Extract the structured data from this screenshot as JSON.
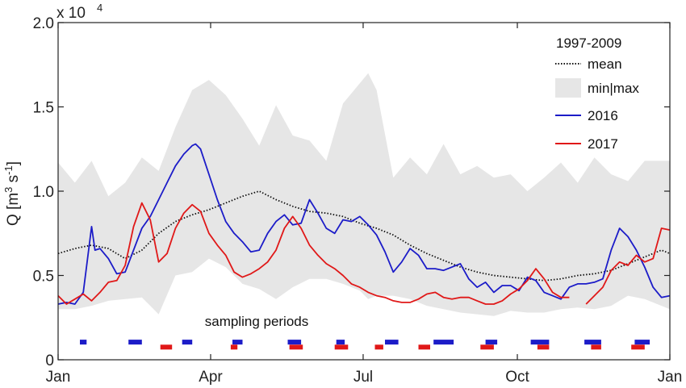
{
  "chart_data": {
    "type": "line",
    "ylabel_prefix": "Q [m",
    "ylabel_sup1": "3",
    "ylabel_mid": " s",
    "ylabel_sup2": "-1",
    "ylabel_suffix": "]",
    "exponent_label": "x 10",
    "exponent_power": "4",
    "ylim": [
      0,
      20000
    ],
    "xlim": [
      0,
      365
    ],
    "y_ticks": [
      {
        "value": 0,
        "label": "0"
      },
      {
        "value": 5000,
        "label": "0.5"
      },
      {
        "value": 10000,
        "label": "1.0"
      },
      {
        "value": 15000,
        "label": "1.5"
      },
      {
        "value": 20000,
        "label": "2.0"
      }
    ],
    "x_ticks": [
      {
        "value": 0,
        "label": "Jan"
      },
      {
        "value": 91,
        "label": "Apr"
      },
      {
        "value": 182,
        "label": "Jul"
      },
      {
        "value": 274,
        "label": "Oct"
      },
      {
        "value": 365,
        "label": "Jan"
      }
    ],
    "legend_title": "1997-2009",
    "legend_position": "top-right",
    "annotation": "sampling periods",
    "band": {
      "name": "min|max",
      "color": "#e6e6e6",
      "x": [
        0,
        10,
        20,
        30,
        40,
        50,
        60,
        70,
        80,
        90,
        100,
        110,
        120,
        130,
        140,
        150,
        160,
        170,
        180,
        185,
        190,
        200,
        210,
        220,
        230,
        240,
        250,
        260,
        270,
        280,
        290,
        300,
        310,
        320,
        330,
        340,
        350,
        365
      ],
      "upper": [
        11700,
        10500,
        11800,
        9700,
        10500,
        12000,
        11200,
        13800,
        16000,
        16600,
        15700,
        14300,
        12700,
        15100,
        13300,
        13000,
        11800,
        15200,
        16400,
        17000,
        16000,
        10800,
        12000,
        11000,
        12800,
        11000,
        11500,
        10800,
        11000,
        10000,
        10800,
        11700,
        10500,
        12000,
        11000,
        10600,
        11800,
        11800
      ],
      "lower": [
        3000,
        3000,
        3200,
        3500,
        3600,
        3700,
        2700,
        5000,
        5200,
        6000,
        5500,
        4500,
        4200,
        3600,
        4300,
        4800,
        4800,
        4500,
        4100,
        3600,
        3800,
        3800,
        3600,
        3200,
        3000,
        2800,
        2700,
        2600,
        2900,
        2800,
        2800,
        3000,
        3100,
        3000,
        3200,
        3800,
        3600,
        3000
      ]
    },
    "series": [
      {
        "name": "mean",
        "color": "#111111",
        "style": "dotted",
        "x": [
          0,
          10,
          20,
          30,
          40,
          50,
          60,
          70,
          80,
          90,
          100,
          110,
          120,
          130,
          140,
          150,
          160,
          170,
          180,
          190,
          200,
          210,
          220,
          230,
          240,
          250,
          260,
          270,
          280,
          290,
          300,
          310,
          320,
          330,
          340,
          350,
          360,
          365
        ],
        "y": [
          6300,
          6600,
          6800,
          6600,
          6000,
          6500,
          7500,
          8200,
          8600,
          8900,
          9300,
          9700,
          10000,
          9500,
          9100,
          8800,
          8700,
          8500,
          8100,
          7800,
          7400,
          6800,
          6300,
          5900,
          5500,
          5200,
          5000,
          4900,
          4800,
          4700,
          4800,
          5000,
          5100,
          5300,
          5700,
          6100,
          6500,
          6300
        ]
      },
      {
        "name": "2016",
        "color": "#1c1cc8",
        "style": "solid",
        "x": [
          0,
          5,
          10,
          15,
          20,
          22,
          25,
          30,
          35,
          40,
          45,
          50,
          55,
          60,
          65,
          70,
          75,
          80,
          82,
          85,
          90,
          95,
          100,
          105,
          110,
          115,
          120,
          125,
          130,
          135,
          140,
          145,
          150,
          155,
          160,
          165,
          170,
          175,
          180,
          185,
          190,
          195,
          200,
          205,
          210,
          215,
          220,
          225,
          230,
          235,
          240,
          245,
          250,
          255,
          260,
          265,
          270,
          275,
          280,
          285,
          290,
          295,
          300,
          305,
          310,
          315,
          320,
          325,
          330,
          335,
          340,
          345,
          350,
          355,
          360,
          365
        ],
        "y": [
          3300,
          3400,
          3300,
          4000,
          7900,
          6500,
          6600,
          6000,
          5100,
          5200,
          6500,
          7800,
          8500,
          9500,
          10500,
          11500,
          12200,
          12700,
          12800,
          12500,
          11000,
          9500,
          8200,
          7500,
          7000,
          6400,
          6500,
          7500,
          8200,
          8600,
          8000,
          8100,
          9500,
          8700,
          7800,
          7500,
          8300,
          8200,
          8500,
          8000,
          7400,
          6400,
          5200,
          5800,
          6600,
          6200,
          5400,
          5400,
          5300,
          5500,
          5700,
          4800,
          4300,
          4600,
          4000,
          4400,
          4400,
          4100,
          4900,
          4700,
          4000,
          3800,
          3600,
          4300,
          4500,
          4500,
          4600,
          4800,
          6500,
          7800,
          7300,
          6500,
          5500,
          4300,
          3700,
          3800
        ]
      },
      {
        "name": "2017",
        "color": "#e01818",
        "style": "solid",
        "x": [
          0,
          5,
          10,
          15,
          20,
          25,
          30,
          35,
          40,
          45,
          50,
          55,
          60,
          65,
          70,
          75,
          80,
          85,
          90,
          95,
          100,
          105,
          110,
          115,
          120,
          125,
          130,
          135,
          140,
          145,
          150,
          155,
          160,
          165,
          170,
          175,
          180,
          185,
          190,
          195,
          200,
          205,
          210,
          215,
          220,
          225,
          230,
          235,
          240,
          245,
          250,
          255,
          260,
          265,
          270,
          275,
          280,
          285,
          290,
          295,
          300,
          305,
          310,
          315,
          320,
          325,
          330,
          335,
          340,
          345,
          350,
          355,
          360,
          365
        ],
        "y": [
          3800,
          3300,
          3600,
          3900,
          3500,
          4000,
          4600,
          4700,
          5600,
          7900,
          9300,
          8300,
          5800,
          6300,
          7800,
          8700,
          9200,
          8800,
          7500,
          6800,
          6200,
          5200,
          4900,
          5100,
          5400,
          5800,
          6500,
          7800,
          8500,
          7800,
          6800,
          6200,
          5700,
          5400,
          5000,
          4500,
          4300,
          4000,
          3800,
          3700,
          3500,
          3400,
          3400,
          3600,
          3900,
          4000,
          3700,
          3600,
          3700,
          3700,
          3500,
          3300,
          3300,
          3500,
          3900,
          4200,
          4700,
          5400,
          4800,
          4000,
          3700,
          3700,
          null,
          3300,
          3800,
          4300,
          5300,
          5800,
          5600,
          6200,
          5800,
          6000,
          7800,
          7700
        ]
      }
    ],
    "sampling_periods": [
      {
        "name": "2016",
        "color": "#1c1cc8",
        "level": 1050,
        "intervals": [
          [
            13,
            17
          ],
          [
            42,
            50
          ],
          [
            74,
            80
          ],
          [
            104,
            110
          ],
          [
            137,
            145
          ],
          [
            166,
            171
          ],
          [
            195,
            203
          ],
          [
            224,
            236
          ],
          [
            255,
            262
          ],
          [
            282,
            293
          ],
          [
            314,
            324
          ],
          [
            344,
            353
          ]
        ]
      },
      {
        "name": "2017",
        "color": "#e01818",
        "level": 750,
        "intervals": [
          [
            61,
            68
          ],
          [
            103,
            107
          ],
          [
            138,
            146
          ],
          [
            165,
            173
          ],
          [
            189,
            194
          ],
          [
            215,
            222
          ],
          [
            252,
            260
          ],
          [
            286,
            293
          ],
          [
            318,
            324
          ],
          [
            342,
            350
          ]
        ]
      }
    ]
  }
}
